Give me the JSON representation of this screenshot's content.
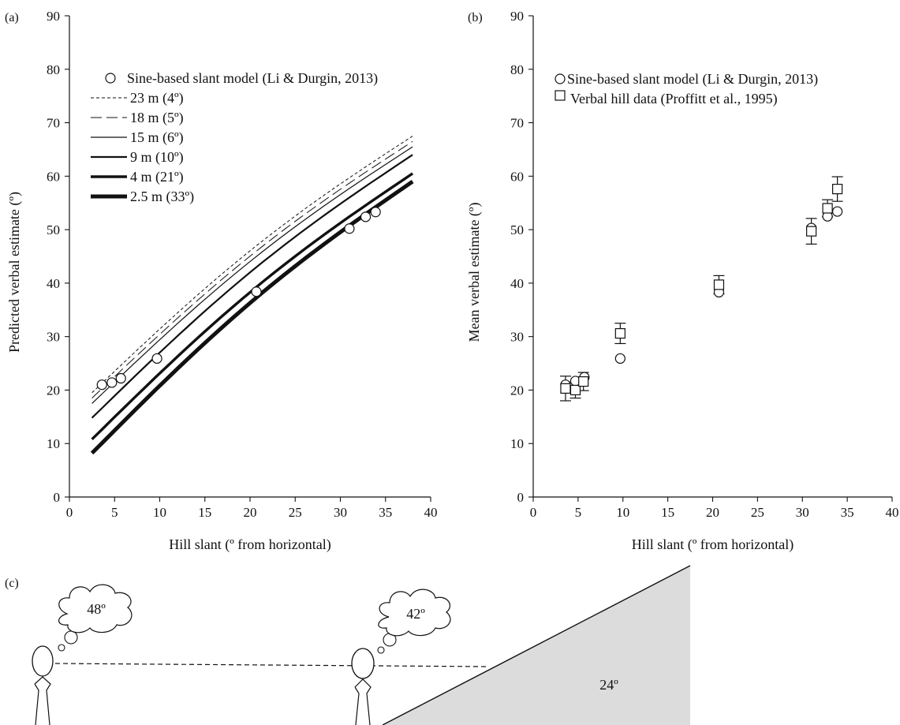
{
  "panels": {
    "a_label": "(a)",
    "b_label": "(b)",
    "c_label": "(c)"
  },
  "chart_data": [
    {
      "type": "line",
      "panel": "(a)",
      "xlabel": "Hill slant (º from horizontal)",
      "ylabel": "Predicted verbal estimate (º)",
      "xlim": [
        0,
        40
      ],
      "ylim": [
        0,
        90
      ],
      "x_ticks": [
        0,
        5,
        10,
        15,
        20,
        25,
        30,
        35,
        40
      ],
      "y_ticks": [
        0,
        10,
        20,
        30,
        40,
        50,
        60,
        70,
        80,
        90
      ],
      "grid": false,
      "legend_position": "top-left",
      "series": [
        {
          "name": "23 m (4º)",
          "style": "dashed-fine",
          "width": 1,
          "x": [
            2.5,
            38
          ],
          "y": [
            19.5,
            67.5
          ]
        },
        {
          "name": "18 m (5º)",
          "style": "dashed-long",
          "width": 1,
          "x": [
            2.5,
            38
          ],
          "y": [
            18.5,
            66.5
          ]
        },
        {
          "name": "15 m (6º)",
          "style": "solid",
          "width": 1.2,
          "x": [
            2.5,
            38
          ],
          "y": [
            17.5,
            65.5
          ]
        },
        {
          "name": "9 m (10º)",
          "style": "solid",
          "width": 2.2,
          "x": [
            2.5,
            38
          ],
          "y": [
            14.8,
            64
          ]
        },
        {
          "name": "4 m (21º)",
          "style": "solid",
          "width": 3.4,
          "x": [
            2.5,
            38
          ],
          "y": [
            10.8,
            60.5
          ]
        },
        {
          "name": "2.5 m (33º)",
          "style": "solid",
          "width": 5,
          "x": [
            2.5,
            38
          ],
          "y": [
            8.2,
            59
          ]
        }
      ],
      "markers": {
        "name": "Sine-based slant model (Li & Durgin, 2013)",
        "shape": "circle",
        "x": [
          3.6,
          4.7,
          5.7,
          9.7,
          20.7,
          31.0,
          32.8,
          33.9
        ],
        "y": [
          21.0,
          21.4,
          22.2,
          25.9,
          38.4,
          50.2,
          52.4,
          53.3
        ]
      }
    },
    {
      "type": "scatter",
      "panel": "(b)",
      "xlabel": "Hill slant (º from horizontal)",
      "ylabel": "Mean verbal estimate (º)",
      "xlim": [
        0,
        40
      ],
      "ylim": [
        0,
        90
      ],
      "x_ticks": [
        0,
        5,
        10,
        15,
        20,
        25,
        30,
        35,
        40
      ],
      "y_ticks": [
        0,
        10,
        20,
        30,
        40,
        50,
        60,
        70,
        80,
        90
      ],
      "grid": false,
      "legend_position": "top-left",
      "series": [
        {
          "name": "Sine-based slant model (Li & Durgin, 2013)",
          "shape": "circle",
          "x": [
            3.6,
            4.7,
            5.7,
            9.7,
            20.7,
            31.0,
            32.8,
            33.9
          ],
          "y": [
            21.0,
            21.7,
            22.4,
            25.9,
            38.3,
            50.3,
            52.5,
            53.4
          ]
        },
        {
          "name": "Verbal hill data (Proffitt et al., 1995)",
          "shape": "square",
          "x": [
            3.6,
            4.7,
            5.6,
            9.7,
            20.7,
            31.0,
            32.8,
            33.9
          ],
          "y": [
            20.3,
            20.0,
            21.6,
            30.6,
            39.7,
            49.7,
            54.0,
            57.6
          ],
          "err": [
            2.3,
            1.5,
            1.7,
            1.9,
            1.7,
            2.4,
            1.6,
            2.3
          ]
        }
      ]
    }
  ],
  "illustration": {
    "thought_far": "48º",
    "thought_near": "42º",
    "hill_angle": "24º"
  }
}
